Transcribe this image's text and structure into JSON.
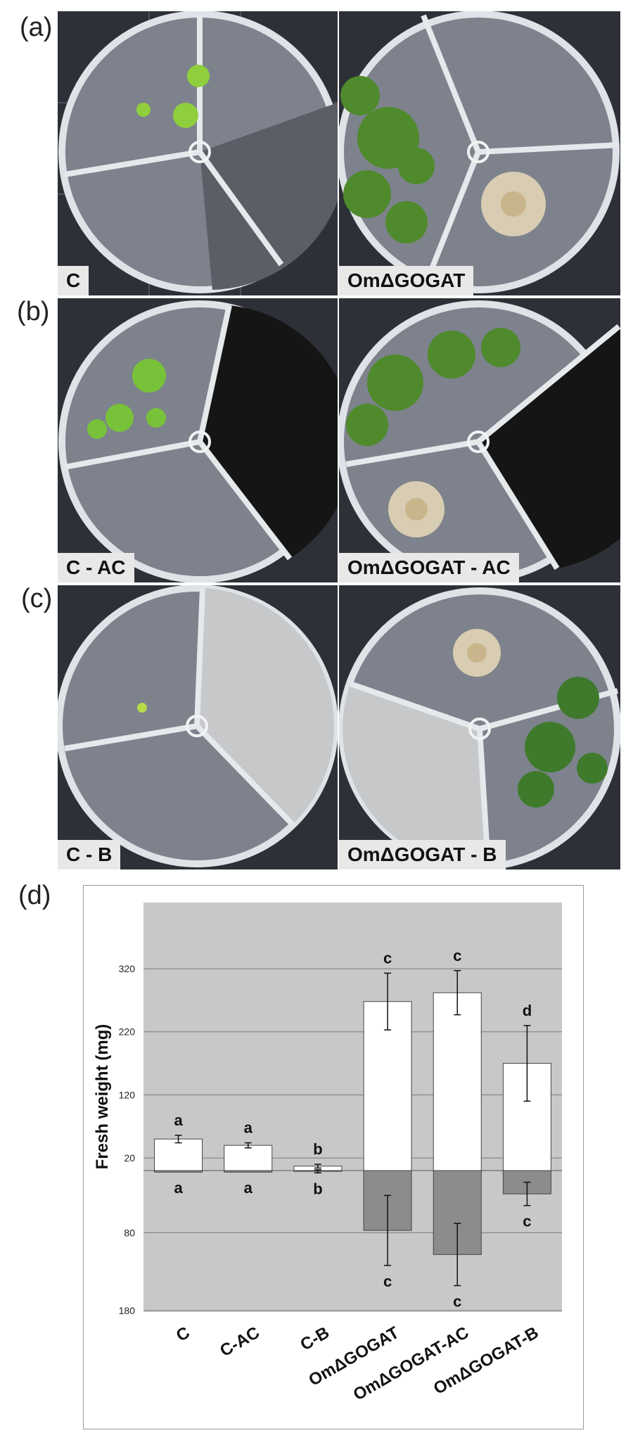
{
  "panels": {
    "a": "(a)",
    "b": "(b)",
    "c": "(c)",
    "d": "(d)"
  },
  "plates": {
    "a_left": "C",
    "a_right": "OmΔGOGAT",
    "b_left": "C - AC",
    "b_right": "OmΔGOGAT - AC",
    "c_left": "C - B",
    "c_right": "OmΔGOGAT - B"
  },
  "colors": {
    "plot_bg": "#c8c8c8",
    "shoot_bar": "#ffffff",
    "root_bar": "#8c8c8c",
    "gridline": "#7a7a7a"
  },
  "chart_data": {
    "type": "bar",
    "ylabel": "Fresh weight (mg)",
    "categories": [
      "C",
      "C-AC",
      "C-B",
      "OmΔGOGAT",
      "OmΔGOGAT-AC",
      "OmΔGOGAT-B"
    ],
    "y_ticks_up": [
      "320",
      "220",
      "120",
      "20"
    ],
    "y_ticks_down": [
      "80",
      "180"
    ],
    "ylim_up": [
      0,
      370
    ],
    "ylim_down": [
      0,
      180
    ],
    "series": [
      {
        "values": [
          50,
          40,
          7,
          268,
          282,
          170
        ],
        "errors": [
          6,
          4,
          3,
          45,
          35,
          60
        ],
        "letters": [
          "a",
          "a",
          "b",
          "c",
          "c",
          "d"
        ]
      },
      {
        "values": [
          2,
          2,
          1,
          77,
          108,
          30
        ],
        "errors": [
          0,
          0,
          2,
          45,
          40,
          15
        ],
        "letters": [
          "a",
          "a",
          "b",
          "c",
          "c",
          "c"
        ]
      }
    ]
  }
}
